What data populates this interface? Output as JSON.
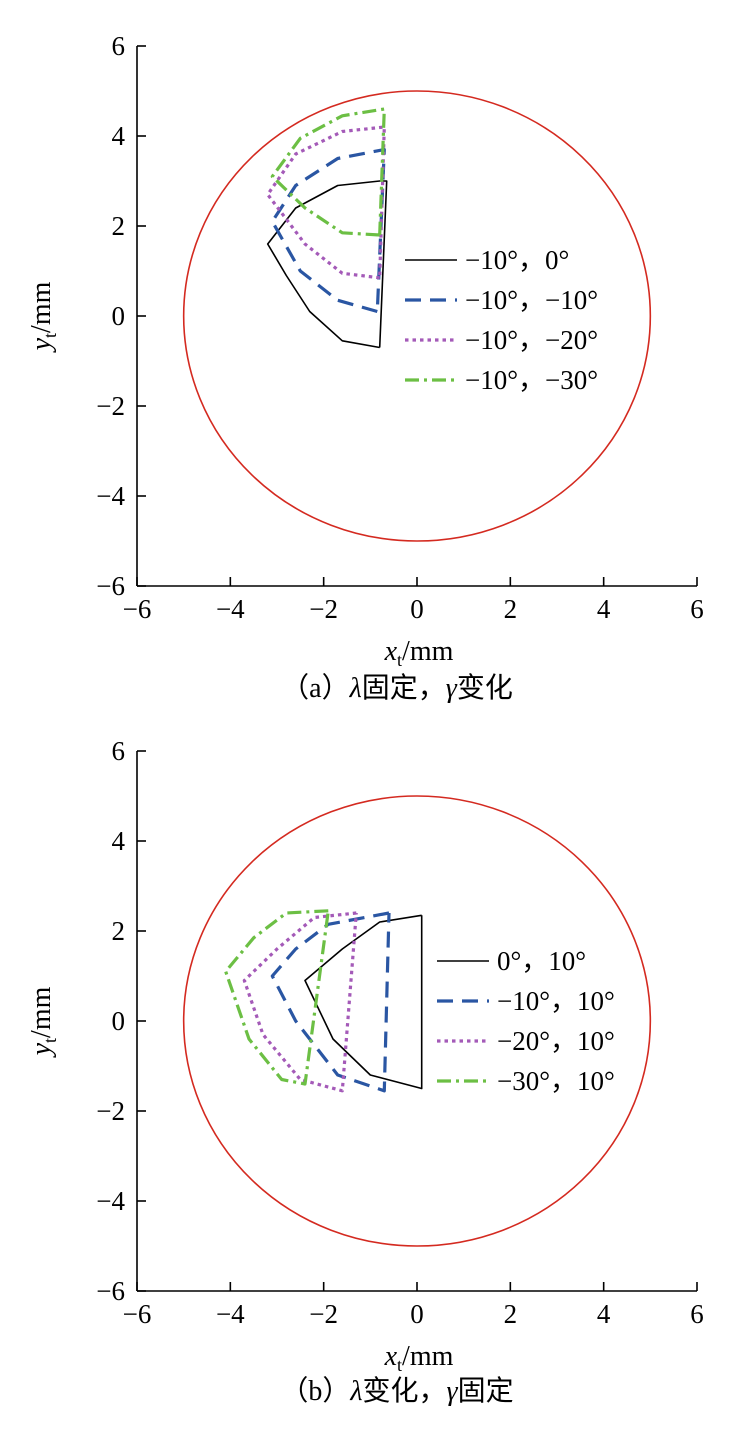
{
  "chart_data": [
    {
      "type": "line",
      "caption": {
        "prefix": "（a）",
        "lambda": "λ",
        "mid": "固定，",
        "gamma": "γ",
        "suffix": "变化"
      },
      "xlabel": {
        "base": "x",
        "sub": "t",
        "unit": "/mm"
      },
      "ylabel": {
        "base": "y",
        "sub": "t",
        "unit": "/mm"
      },
      "xlim": [
        -6,
        6
      ],
      "ylim": [
        -6,
        6
      ],
      "xticks": [
        "−6",
        "−4",
        "−2",
        "0",
        "2",
        "4",
        "6"
      ],
      "yticks": [
        "−6",
        "−4",
        "−2",
        "0",
        "2",
        "4",
        "6"
      ],
      "legend_position": "center-right",
      "series": [
        {
          "name": "−10°，0°",
          "color": "#000000",
          "style": "solid",
          "points": [
            [
              -0.8,
              -0.7
            ],
            [
              -1.6,
              -0.55
            ],
            [
              -2.3,
              0.1
            ],
            [
              -2.8,
              0.9
            ],
            [
              -3.2,
              1.6
            ],
            [
              -2.6,
              2.4
            ],
            [
              -1.7,
              2.9
            ],
            [
              -0.8,
              3.0
            ],
            [
              -0.65,
              3.0
            ],
            [
              -0.8,
              -0.7
            ]
          ]
        },
        {
          "name": "−10°，−10°",
          "color": "#2a56a3",
          "style": "dash",
          "points": [
            [
              -0.85,
              0.1
            ],
            [
              -1.7,
              0.35
            ],
            [
              -2.5,
              1.0
            ],
            [
              -3.1,
              2.1
            ],
            [
              -2.6,
              2.9
            ],
            [
              -1.7,
              3.5
            ],
            [
              -0.7,
              3.7
            ],
            [
              -0.85,
              0.1
            ]
          ]
        },
        {
          "name": "−10°，−20°",
          "color": "#a45ab8",
          "style": "dot",
          "points": [
            [
              -0.8,
              0.85
            ],
            [
              -1.6,
              0.95
            ],
            [
              -2.4,
              1.6
            ],
            [
              -3.2,
              2.7
            ],
            [
              -2.6,
              3.6
            ],
            [
              -1.6,
              4.1
            ],
            [
              -0.7,
              4.2
            ],
            [
              -0.8,
              0.85
            ]
          ]
        },
        {
          "name": "−10°，−30°",
          "color": "#6cbf44",
          "style": "dashdot",
          "points": [
            [
              -0.8,
              1.8
            ],
            [
              -1.6,
              1.85
            ],
            [
              -2.4,
              2.4
            ],
            [
              -3.1,
              3.1
            ],
            [
              -2.5,
              3.95
            ],
            [
              -1.6,
              4.45
            ],
            [
              -0.7,
              4.6
            ],
            [
              -0.8,
              1.8
            ]
          ]
        },
        {
          "name": "",
          "color": "#d42a20",
          "style": "solid",
          "circle": {
            "cx": 0,
            "cy": 0,
            "r": 5
          }
        }
      ]
    },
    {
      "type": "line",
      "caption": {
        "prefix": "（b）",
        "lambda": "λ",
        "mid": "变化，",
        "gamma": "γ",
        "suffix": "固定"
      },
      "xlabel": {
        "base": "x",
        "sub": "t",
        "unit": "/mm"
      },
      "ylabel": {
        "base": "y",
        "sub": "t",
        "unit": "/mm"
      },
      "xlim": [
        -6,
        6
      ],
      "ylim": [
        -6,
        6
      ],
      "xticks": [
        "−6",
        "−4",
        "−2",
        "0",
        "2",
        "4",
        "6"
      ],
      "yticks": [
        "−6",
        "−4",
        "−2",
        "0",
        "2",
        "4",
        "6"
      ],
      "legend_position": "center-right",
      "series": [
        {
          "name": "0°，10°",
          "color": "#000000",
          "style": "solid",
          "points": [
            [
              0.1,
              2.35
            ],
            [
              -0.8,
              2.2
            ],
            [
              -1.6,
              1.6
            ],
            [
              -2.4,
              0.9
            ],
            [
              -1.8,
              -0.4
            ],
            [
              -1.0,
              -1.2
            ],
            [
              0.1,
              -1.5
            ],
            [
              0.1,
              2.35
            ]
          ]
        },
        {
          "name": "−10°，10°",
          "color": "#2a56a3",
          "style": "dash",
          "points": [
            [
              -0.6,
              2.4
            ],
            [
              -1.9,
              2.15
            ],
            [
              -2.6,
              1.6
            ],
            [
              -3.1,
              1.0
            ],
            [
              -2.6,
              0.0
            ],
            [
              -1.7,
              -1.2
            ],
            [
              -0.7,
              -1.55
            ],
            [
              -0.6,
              2.4
            ]
          ]
        },
        {
          "name": "−20°，10°",
          "color": "#a45ab8",
          "style": "dot",
          "points": [
            [
              -1.3,
              2.4
            ],
            [
              -2.2,
              2.3
            ],
            [
              -3.0,
              1.6
            ],
            [
              -3.7,
              0.9
            ],
            [
              -3.3,
              -0.3
            ],
            [
              -2.5,
              -1.3
            ],
            [
              -1.6,
              -1.55
            ],
            [
              -1.3,
              2.4
            ]
          ]
        },
        {
          "name": "−30°，10°",
          "color": "#6cbf44",
          "style": "dashdot",
          "points": [
            [
              -1.9,
              2.45
            ],
            [
              -2.8,
              2.4
            ],
            [
              -3.5,
              1.85
            ],
            [
              -4.1,
              1.1
            ],
            [
              -3.6,
              -0.4
            ],
            [
              -2.9,
              -1.3
            ],
            [
              -2.4,
              -1.4
            ],
            [
              -1.9,
              2.45
            ]
          ]
        },
        {
          "name": "",
          "color": "#d42a20",
          "style": "solid",
          "circle": {
            "cx": 0,
            "cy": 0,
            "r": 5
          }
        }
      ]
    }
  ]
}
